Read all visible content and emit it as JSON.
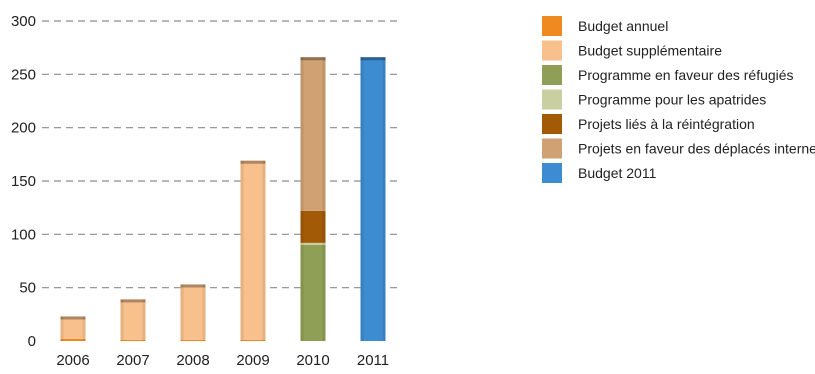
{
  "chart_data": {
    "type": "bar",
    "stacked": true,
    "title": "",
    "xlabel": "",
    "ylabel": "",
    "ylim": [
      0,
      300
    ],
    "yticks": [
      0,
      50,
      100,
      150,
      200,
      250,
      300
    ],
    "grid": "horizontal-dashed",
    "legend_position": "right",
    "categories": [
      "2006",
      "2007",
      "2008",
      "2009",
      "2010",
      "2011"
    ],
    "series": [
      {
        "name": "Budget annuel",
        "color": "#ee8a1f",
        "values": [
          2,
          1,
          1,
          1,
          0,
          0
        ]
      },
      {
        "name": "Budget supplémentaire",
        "color": "#f8c08c",
        "values": [
          21,
          38,
          52,
          168,
          0,
          0
        ]
      },
      {
        "name": "Programme en faveur des réfugiés",
        "color": "#8f9f55",
        "values": [
          0,
          0,
          0,
          0,
          90,
          0
        ]
      },
      {
        "name": "Programme pour les apatrides",
        "color": "#c9cfa0",
        "values": [
          0,
          0,
          0,
          0,
          2,
          0
        ]
      },
      {
        "name": "Projets liés à la réintégration",
        "color": "#a35a06",
        "values": [
          0,
          0,
          0,
          0,
          30,
          0
        ]
      },
      {
        "name": "Projets en faveur des déplacés internes",
        "color": "#cfa173",
        "values": [
          0,
          0,
          0,
          0,
          144,
          0
        ]
      },
      {
        "name": "Budget 2011",
        "color": "#3d8bd0",
        "values": [
          0,
          0,
          0,
          0,
          0,
          266
        ]
      }
    ]
  }
}
